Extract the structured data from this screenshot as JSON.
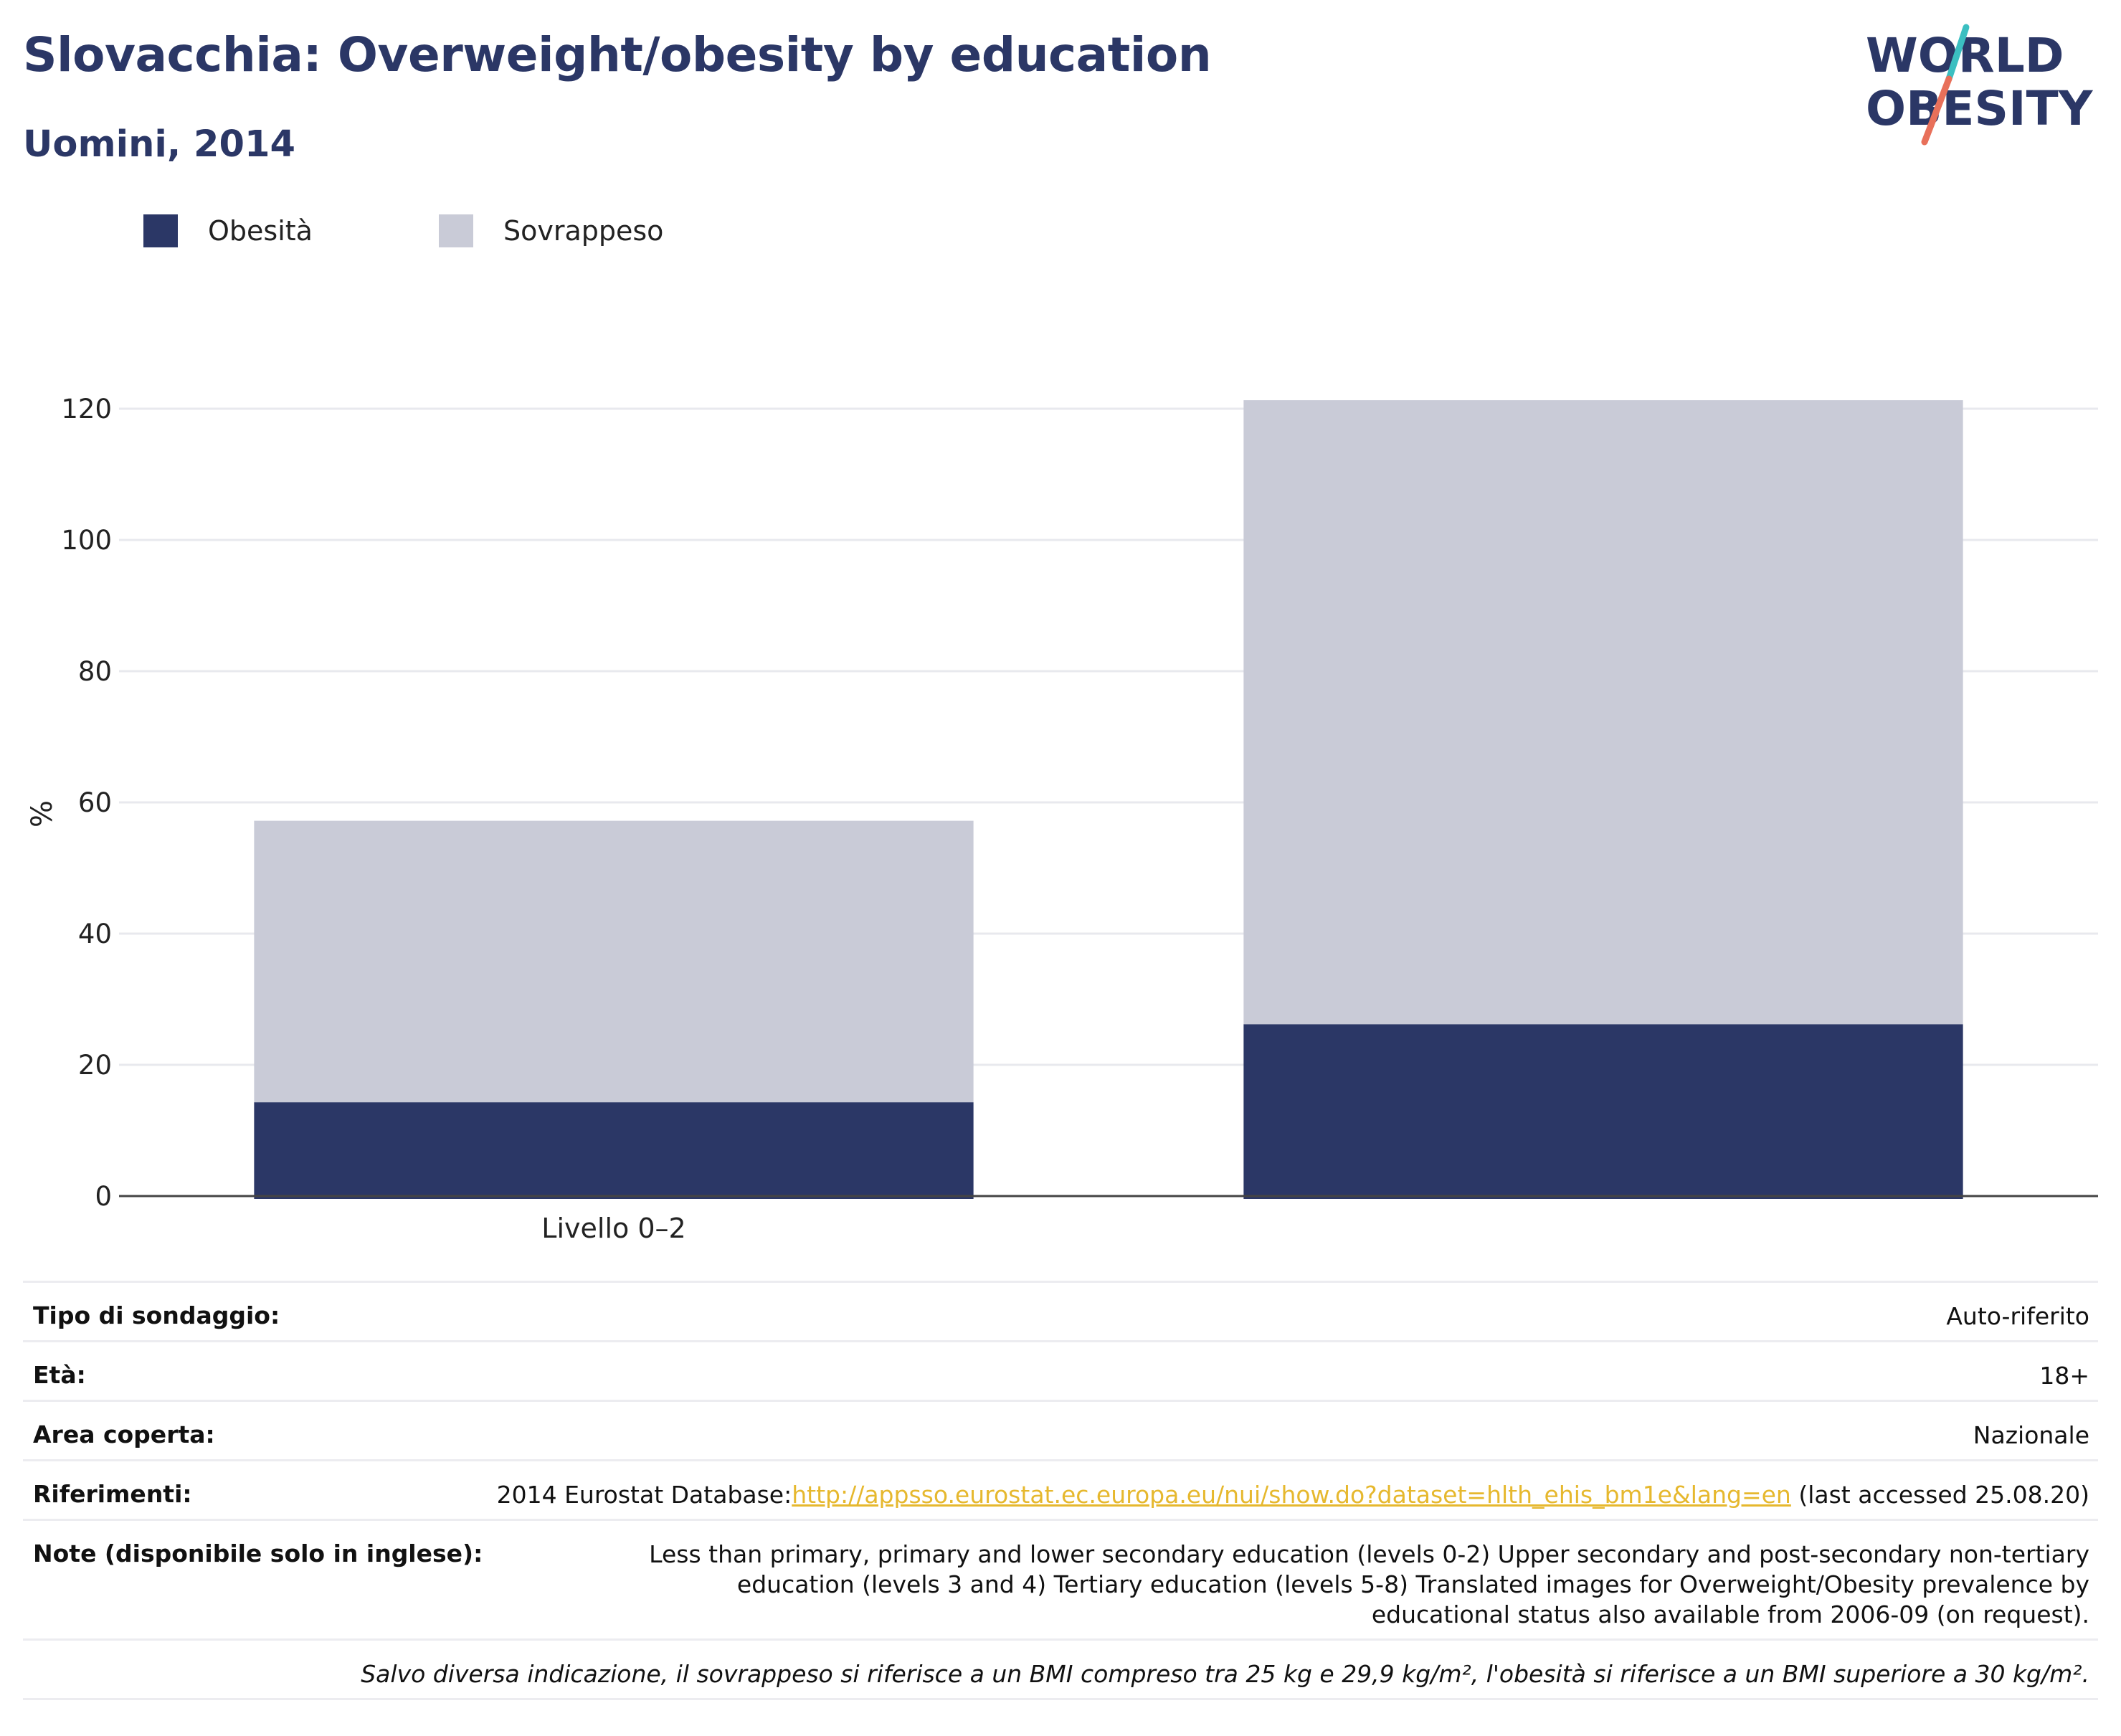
{
  "header": {
    "title": "Slovacchia: Overweight/obesity by education",
    "subtitle": "Uomini, 2014"
  },
  "logo": {
    "line1": "WORLD",
    "line2": "OBESITY",
    "colors": {
      "text": "#2b3766",
      "slash_top": "#3bbfc1",
      "slash_bottom": "#e8705a"
    }
  },
  "legend": {
    "items": [
      {
        "label": "Obesità",
        "color": "#2b3766"
      },
      {
        "label": "Sovrappeso",
        "color": "#c9cbd7"
      }
    ]
  },
  "chart_data": {
    "type": "bar",
    "stacked": true,
    "categories": [
      "Livello 0–2",
      ""
    ],
    "series": [
      {
        "name": "Obesità",
        "color": "#2b3766",
        "values": [
          14.3,
          26.2
        ]
      },
      {
        "name": "Sovrappeso",
        "color": "#c9cbd7",
        "values": [
          42.9,
          95.1
        ]
      }
    ],
    "ylabel": "%",
    "ylim": [
      0,
      120
    ],
    "yticks": [
      0,
      20,
      40,
      60,
      80,
      100,
      120
    ],
    "grid": true,
    "legend_position": "top-left"
  },
  "info": {
    "rows": [
      {
        "key": "Tipo di sondaggio:",
        "value": "Auto-riferito"
      },
      {
        "key": "Età:",
        "value": "18+"
      },
      {
        "key": "Area coperta:",
        "value": "Nazionale"
      }
    ],
    "references": {
      "key": "Riferimenti:",
      "prefix": "2014 Eurostat Database:",
      "link": "http://appsso.eurostat.ec.europa.eu/nui/show.do?dataset=hlth_ehis_bm1e&lang=en",
      "suffix": " (last accessed 25.08.20)"
    },
    "notes": {
      "key": "Note (disponibile solo in inglese):",
      "value": "Less than primary, primary and lower secondary education (levels 0-2) Upper secondary and post-secondary non-tertiary education (levels 3 and 4) Tertiary education (levels 5-8) Translated images for Overweight/Obesity prevalence by educational status also available from 2006-09 (on request)."
    },
    "footnote": "Salvo diversa indicazione, il sovrappeso si riferisce a un BMI compreso tra 25 kg e 29,9 kg/m², l'obesità si riferisce a un BMI superiore a 30 kg/m²."
  }
}
